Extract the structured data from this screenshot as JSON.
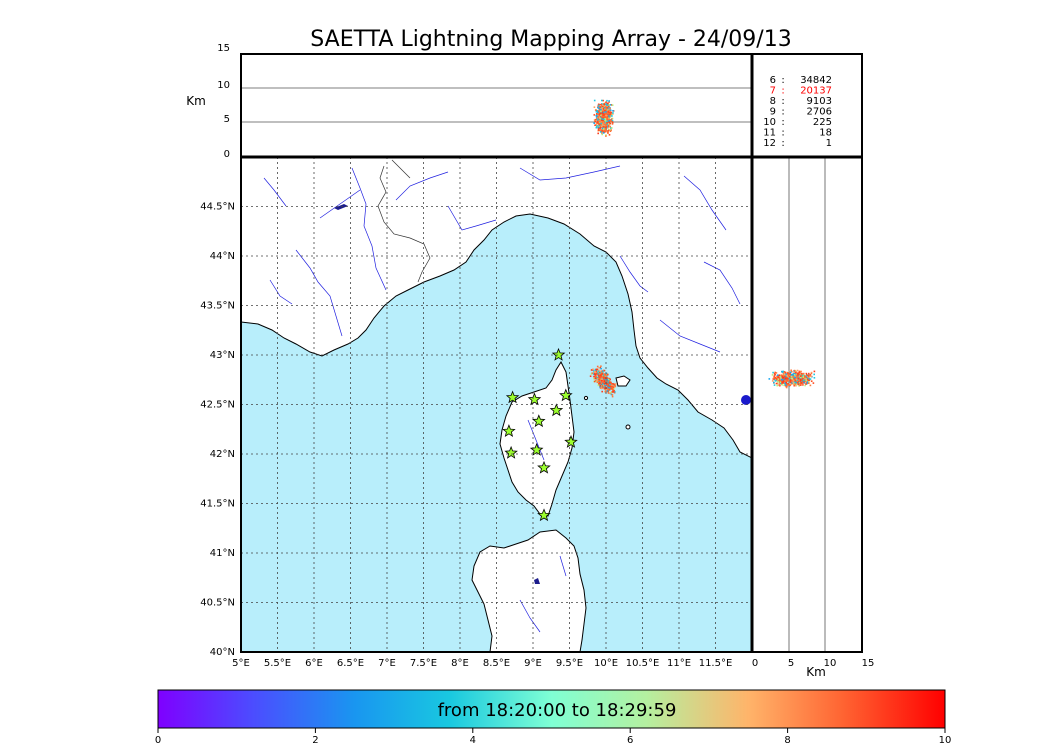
{
  "title": "SAETTA Lightning Mapping Array - 24/09/13",
  "colors": {
    "sea": "#b8eefb",
    "land": "#ffffff",
    "river": "#2020e0",
    "border": "#333333",
    "grid": "#444444",
    "highlight": "#ff0000"
  },
  "altitude_panel": {
    "unit_label": "Km",
    "y_ticks": [
      "0",
      "5",
      "10",
      "15"
    ],
    "x_ticks": [
      "0",
      "5",
      "10",
      "15"
    ],
    "x_unit_label": "Km"
  },
  "stats": {
    "rows": [
      {
        "sep": ":",
        "label": "6",
        "value": "34842",
        "highlight": false
      },
      {
        "sep": ":",
        "label": "7",
        "value": "20137",
        "highlight": true
      },
      {
        "sep": ":",
        "label": "8",
        "value": "9103",
        "highlight": false
      },
      {
        "sep": ":",
        "label": "9",
        "value": "2706",
        "highlight": false
      },
      {
        "sep": ":",
        "label": "10",
        "value": "225",
        "highlight": false
      },
      {
        "sep": ":",
        "label": "11",
        "value": "18",
        "highlight": false
      },
      {
        "sep": ":",
        "label": "12",
        "value": "1",
        "highlight": false
      }
    ]
  },
  "map": {
    "lon_range": [
      5,
      12
    ],
    "lat_range": [
      40,
      45
    ],
    "lon_ticks": [
      "5°E",
      "5.5°E",
      "6°E",
      "6.5°E",
      "7°E",
      "7.5°E",
      "8°E",
      "8.5°E",
      "9°E",
      "9.5°E",
      "10°E",
      "10.5°E",
      "11°E",
      "11.5°E"
    ],
    "lat_ticks": [
      "40°N",
      "40.5°N",
      "41°N",
      "41.5°N",
      "42°N",
      "42.5°N",
      "43°N",
      "43.5°N",
      "44°N",
      "44.5°N"
    ],
    "stations": [
      {
        "lon": 9.35,
        "lat": 43.0
      },
      {
        "lon": 8.72,
        "lat": 42.57
      },
      {
        "lon": 9.02,
        "lat": 42.55
      },
      {
        "lon": 9.45,
        "lat": 42.59
      },
      {
        "lon": 9.32,
        "lat": 42.44
      },
      {
        "lon": 9.08,
        "lat": 42.33
      },
      {
        "lon": 8.67,
        "lat": 42.23
      },
      {
        "lon": 9.52,
        "lat": 42.12
      },
      {
        "lon": 9.05,
        "lat": 42.04
      },
      {
        "lon": 8.7,
        "lat": 42.01
      },
      {
        "lon": 9.15,
        "lat": 41.86
      },
      {
        "lon": 9.15,
        "lat": 41.38
      }
    ]
  },
  "colorbar": {
    "label": "from 18:20:00 to 18:29:59",
    "ticks": [
      "0",
      "2",
      "4",
      "6",
      "8",
      "10"
    ]
  }
}
